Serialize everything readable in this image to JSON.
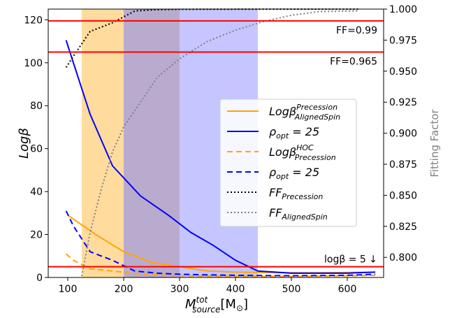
{
  "chart_data": {
    "type": "line",
    "xlabel_main": "M",
    "xlabel_sup": "tot",
    "xlabel_sub": "source",
    "xlabel_unit": "[M",
    "xlabel_unit_sub": "⊙",
    "xlabel_close": "]",
    "ylabel": "Logβ",
    "y2label": "Fitting Factor",
    "xlim": [
      65,
      665
    ],
    "ylim": [
      0,
      125
    ],
    "y2lim": [
      0.7838,
      1.0
    ],
    "xticks": [
      100,
      200,
      300,
      400,
      500,
      600
    ],
    "yticks": [
      0,
      20,
      40,
      60,
      80,
      100,
      120
    ],
    "y2ticks": [
      "0.800",
      "0.825",
      "0.850",
      "0.875",
      "0.900",
      "0.925",
      "0.950",
      "0.975",
      "1.000"
    ],
    "shaded_regions": [
      {
        "x0": 125,
        "x1": 200,
        "color": "#ffdb9e"
      },
      {
        "x0": 200,
        "x1": 300,
        "color": "#b9abce"
      },
      {
        "x0": 300,
        "x1": 440,
        "color": "#c5c5ff"
      }
    ],
    "hlines": [
      {
        "y": 5,
        "label": "logβ = 5 ↓",
        "color": "#ff0000"
      },
      {
        "y": 105,
        "label": "FF=0.965",
        "color": "#ff0000"
      },
      {
        "y": 119.5,
        "label": "FF=0.99",
        "color": "#ff0000"
      }
    ],
    "series": [
      {
        "name": "Precession, AlignedSpin",
        "axis": "left",
        "color": "#ffa500",
        "dash": "solid",
        "x": [
          100,
          150,
          200,
          250,
          300,
          350,
          400,
          450,
          500,
          550,
          600,
          650
        ],
        "y": [
          29,
          20,
          12,
          7,
          5,
          3,
          2.5,
          2.3,
          2.2,
          2.2,
          2.3,
          2.5
        ]
      },
      {
        "name": "ρ_opt = 25",
        "axis": "left",
        "color": "#0000ff",
        "dash": "solid",
        "x": [
          97,
          110,
          140,
          180,
          230,
          280,
          320,
          360,
          400,
          440,
          500,
          550,
          600,
          650
        ],
        "y": [
          110.5,
          100,
          76,
          52,
          38,
          29,
          21,
          15,
          8,
          3,
          2,
          2,
          2,
          2.5
        ]
      },
      {
        "name": "HOC, Precession",
        "axis": "left",
        "color": "#ffa500",
        "dash": "dash",
        "x": [
          97,
          110,
          140,
          180,
          230,
          300,
          350,
          400,
          500,
          600,
          650
        ],
        "y": [
          11,
          8,
          4,
          3,
          1.5,
          0.8,
          0.6,
          0.5,
          0.5,
          0.8,
          1
        ],
        "...": ""
      },
      {
        "name": "ρ_opt = 25",
        "axis": "left",
        "color": "#0000ff",
        "dash": "dash",
        "x": [
          97,
          110,
          140,
          180,
          220,
          260,
          300,
          350,
          400,
          500,
          600,
          650
        ],
        "y": [
          31,
          24,
          12,
          8,
          3,
          2,
          1.5,
          1.2,
          1,
          0.8,
          1,
          1.5
        ]
      },
      {
        "name": "FF Precession",
        "axis": "right",
        "color": "#000000",
        "dash": "dot",
        "x": [
          97,
          110,
          140,
          180,
          220,
          260,
          300,
          400,
          500,
          620
        ],
        "y": [
          0.953,
          0.962,
          0.982,
          0.989,
          0.9985,
          0.9995,
          0.9998,
          0.9999,
          0.9999,
          0.9999
        ]
      },
      {
        "name": "FF AlignedSpin",
        "axis": "right",
        "color": "#808080",
        "dash": "dot",
        "x": [
          125,
          140,
          160,
          180,
          200,
          230,
          260,
          300,
          350,
          400,
          450,
          500,
          550,
          620
        ],
        "y": [
          0.785,
          0.82,
          0.855,
          0.885,
          0.905,
          0.925,
          0.945,
          0.96,
          0.974,
          0.983,
          0.99,
          0.995,
          0.998,
          0.9985
        ]
      }
    ],
    "legend": {
      "placement": "center-right",
      "entries": [
        {
          "main": "Logβ",
          "sup": "Precession",
          "sub": "AlignedSpin",
          "color": "#ffa500",
          "dash": "solid"
        },
        {
          "main": "ρ",
          "sub": "opt",
          "rest": " = 25",
          "color": "#0000ff",
          "dash": "solid"
        },
        {
          "main": "Logβ",
          "sup": "HOC",
          "sub": "Precession",
          "color": "#ffa500",
          "dash": "dash"
        },
        {
          "main": "ρ",
          "sub": "opt",
          "rest": " = 25",
          "color": "#0000ff",
          "dash": "dash"
        },
        {
          "main": "FF",
          "sub": "Precession",
          "color": "#000000",
          "dash": "dot"
        },
        {
          "main": "FF",
          "sub": "AlignedSpin",
          "color": "#808080",
          "dash": "dot"
        }
      ]
    }
  }
}
